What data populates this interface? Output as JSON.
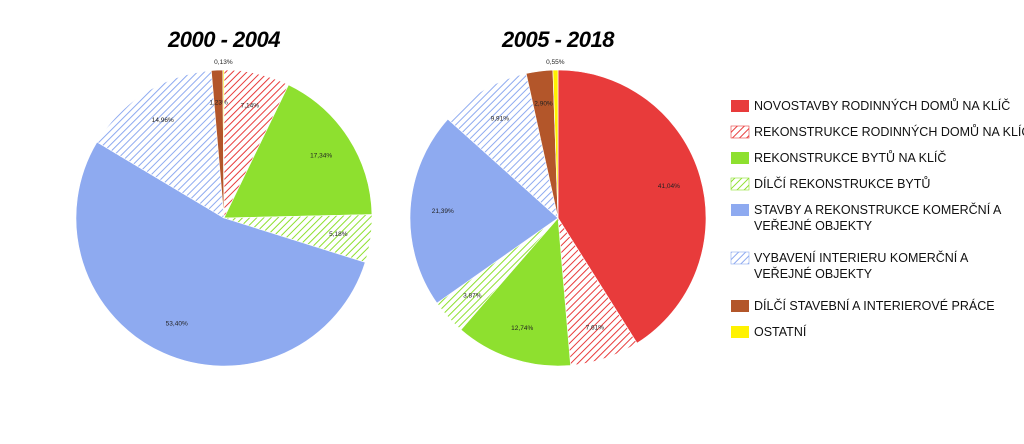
{
  "chart_data": {
    "type": "pie",
    "categories": [
      "NOVOSTAVBY RODINNÝCH DOMŮ NA KLÍČ",
      "REKONSTRUKCE RODINNÝCH DOMŮ NA KLÍČ",
      "REKONSTRUKCE BYTŮ NA KLÍČ",
      "DÍLČÍ REKONSTRUKCE BYTŮ",
      "STAVBY A REKONSTRUKCE KOMERČNÍ A VEŘEJNÉ OBJEKTY",
      "VYBAVENÍ INTERIERU KOMERČNÍ A VEŘEJNÉ OBJEKTY",
      "DÍLČÍ STAVEBNÍ A INTERIEROVÉ PRÁCE",
      "OSTATNÍ"
    ],
    "legend_lines": [
      [
        "NOVOSTAVBY RODINNÝCH DOMŮ NA KLÍČ"
      ],
      [
        "REKONSTRUKCE RODINNÝCH DOMŮ NA KLÍČ"
      ],
      [
        "REKONSTRUKCE BYTŮ NA KLÍČ"
      ],
      [
        "DÍLČÍ REKONSTRUKCE BYTŮ"
      ],
      [
        "STAVBY A REKONSTRUKCE KOMERČNÍ A",
        "VEŘEJNÉ OBJEKTY"
      ],
      [
        "VYBAVENÍ INTERIERU KOMERČNÍ A",
        "VEŘEJNÉ OBJEKTY"
      ],
      [
        "DÍLČÍ STAVEBNÍ A INTERIEROVÉ PRÁCE"
      ],
      [
        "OSTATNÍ"
      ]
    ],
    "styles": [
      {
        "fill": "#e83b3b",
        "pattern": "solid"
      },
      {
        "fill": "#e83b3b",
        "pattern": "hatch"
      },
      {
        "fill": "#8ee02f",
        "pattern": "solid"
      },
      {
        "fill": "#8ee02f",
        "pattern": "hatch"
      },
      {
        "fill": "#8eaaf0",
        "pattern": "solid"
      },
      {
        "fill": "#8eaaf0",
        "pattern": "hatch"
      },
      {
        "fill": "#b3562a",
        "pattern": "solid"
      },
      {
        "fill": "#fff200",
        "pattern": "solid"
      }
    ],
    "pies": [
      {
        "title": "2000 - 2004",
        "values": [
          0,
          7.14,
          17.34,
          5.18,
          53.4,
          14.96,
          1.23,
          0.13
        ],
        "labels": [
          "",
          "7,14%",
          "17,34%",
          "5,18%",
          "53,40%",
          "14,96%",
          "1,23%",
          "0,13%"
        ]
      },
      {
        "title": "2005 - 2018",
        "values": [
          41.04,
          7.61,
          12.74,
          3.87,
          21.39,
          9.91,
          2.9,
          0.55
        ],
        "labels": [
          "41,04%",
          "7,61%",
          "12,74%",
          "3,87%",
          "21,39%",
          "9,91%",
          "2,90%",
          "0,55%"
        ]
      }
    ],
    "legend_position": "right"
  }
}
